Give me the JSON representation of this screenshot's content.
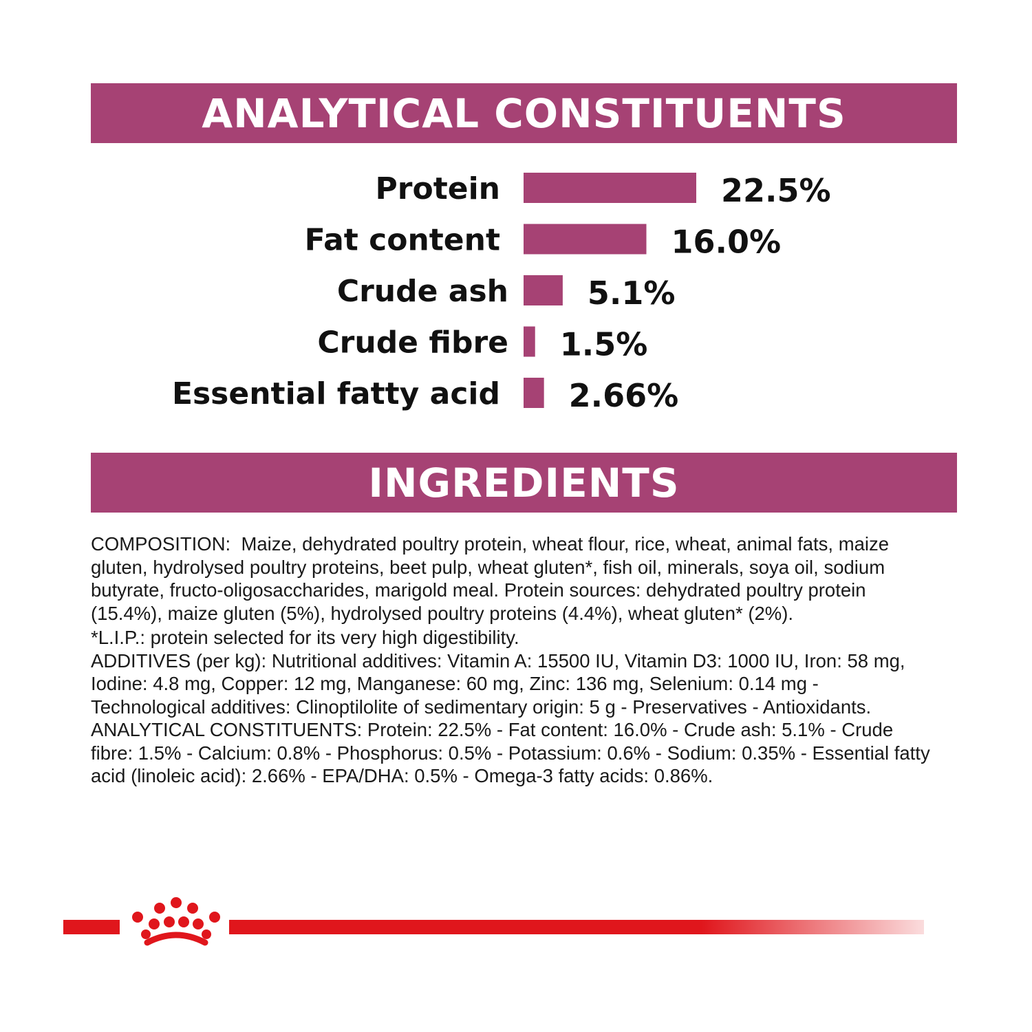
{
  "colors": {
    "banner": "#a64274",
    "bar": "#a64274",
    "brand_red": "#e0161c"
  },
  "sections": {
    "analytical_title": "ANALYTICAL CONSTITUENTS",
    "ingredients_title": "INGREDIENTS"
  },
  "chart_data": {
    "type": "bar",
    "orientation": "horizontal",
    "categories": [
      "Protein",
      "Fat content",
      "Crude ash",
      "Crude fibre",
      "Essential fatty acid"
    ],
    "values": [
      22.5,
      16.0,
      5.1,
      1.5,
      2.66
    ],
    "value_labels": [
      "22.5%",
      "16.0%",
      "5.1%",
      "1.5%",
      "2.66%"
    ],
    "title": "ANALYTICAL CONSTITUENTS",
    "xlabel": "",
    "ylabel": "",
    "grid": false
  },
  "ingredients": {
    "composition": "COMPOSITION:  Maize, dehydrated poultry protein, wheat flour, rice, wheat, animal fats, maize gluten, hydrolysed poultry proteins, beet pulp, wheat gluten*, fish oil, minerals, soya oil, sodium butyrate, fructo-oligosaccharides, marigold meal. Protein sources: dehydrated poultry protein (15.4%), maize gluten (5%), hydrolysed poultry proteins (4.4%), wheat gluten* (2%).",
    "lip_note": "*L.I.P.: protein selected for its very high digestibility.",
    "additives": "ADDITIVES (per kg): Nutritional additives: Vitamin A: 15500 IU, Vitamin D3: 1000 IU, Iron: 58 mg, Iodine: 4.8 mg, Copper: 12 mg, Manganese: 60 mg, Zinc: 136 mg, Selenium: 0.14 mg - Technological additives: Clinoptilolite of sedimentary origin: 5 g - Preservatives - Antioxidants.",
    "analytical": "ANALYTICAL CONSTITUENTS: Protein: 22.5% - Fat content: 16.0% - Crude ash: 5.1% - Crude fibre: 1.5% - Calcium: 0.8% - Phosphorus: 0.5% - Potassium: 0.6% - Sodium: 0.35% - Essential fatty acid (linoleic acid): 2.66% - EPA/DHA: 0.5% - Omega-3 fatty acids: 0.86%."
  },
  "logo": {
    "icon": "crown-icon"
  }
}
